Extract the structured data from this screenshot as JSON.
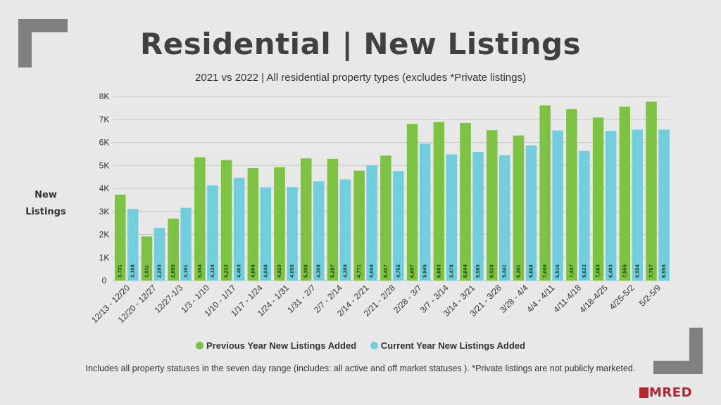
{
  "title": "Residential | New Listings",
  "subtitle": "2021 vs 2022 | All residential property types (excludes *Private listings)",
  "ylabel": "New Listings",
  "legend": {
    "previous": "Previous Year New Listings Added",
    "current": "Current Year New Listings Added"
  },
  "footnote": "Includes all property statuses in the seven day range (includes: all active and off market statuses ). *Private listings are not publicly marketed.",
  "logo": "MRED",
  "colors": {
    "previous": "#7dc242",
    "current": "#72cddd",
    "grid": "#c8c8c8",
    "corner": "#808080"
  },
  "chart_data": {
    "type": "bar",
    "categories": [
      "12/13 - 12/20",
      "12/20 - 12/27",
      "12/27-1/3",
      "1/3 - 1/10",
      "1/10 - 1/17",
      "1/17 - 1/24",
      "1/24 - 1/31",
      "1/31 - 2/7",
      "2/7 - 2/14",
      "2/14 - 2/21",
      "2/21 - 2/28",
      "2/28 - 3/7",
      "3/7 - 3/14",
      "3/14 - 3/21",
      "3/21 - 3/28",
      "3/28 - 4/4",
      "4/4 - 4/11",
      "4/11-4/18",
      "4/18-4/25",
      "4/25-5/2",
      "5/2-5/9"
    ],
    "series": [
      {
        "name": "Previous Year New Listings Added",
        "values": [
          3731,
          1911,
          2690,
          5354,
          5232,
          4885,
          4920,
          5306,
          5287,
          4771,
          5427,
          6807,
          6883,
          6844,
          6528,
          6301,
          7606,
          7447,
          7083,
          7555,
          7767
        ]
      },
      {
        "name": "Current Year New Listings Added",
        "values": [
          3108,
          2293,
          3161,
          4134,
          4463,
          4046,
          4055,
          4308,
          4389,
          5009,
          4755,
          5945,
          5478,
          5585,
          5441,
          5868,
          6516,
          5623,
          6493,
          6554,
          6555
        ]
      }
    ],
    "data_labels": {
      "previous": [
        "3,731",
        "1,911",
        "2,690",
        "5,354",
        "5,232",
        "4,885",
        "4,920",
        "5,306",
        "5,287",
        "4,771",
        "5,427",
        "6,807",
        "6,883",
        "6,844",
        "6,528",
        "6,301",
        "7,606",
        "7,447",
        "7,083",
        "7,555",
        "7,767"
      ],
      "current": [
        "3,108",
        "2,293",
        "3,161",
        "4,134",
        "4,463",
        "4,046",
        "4,055",
        "4,308",
        "4,389",
        "5,009",
        "4,755",
        "5,945",
        "5,478",
        "5,585",
        "5,441",
        "5,868",
        "6,516",
        "5,623",
        "6,493",
        "6,554",
        "6,555"
      ]
    },
    "yticks": [
      "0",
      "1K",
      "2K",
      "3K",
      "4K",
      "5K",
      "6K",
      "7K",
      "8K"
    ],
    "ylim": [
      0,
      8000
    ],
    "grid": true,
    "legend_position": "bottom"
  }
}
